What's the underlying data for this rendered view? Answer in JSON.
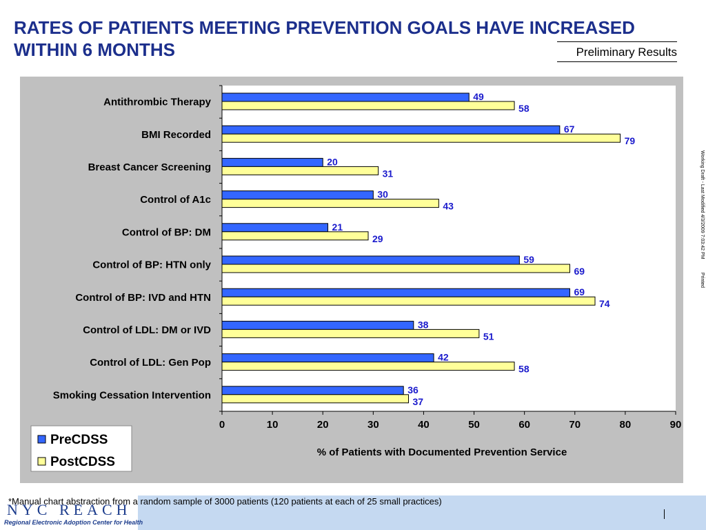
{
  "header": {
    "title": "RATES OF PATIENTS MEETING PREVENTION GOALS HAVE INCREASED WITHIN 6 MONTHS",
    "subtitle": "Preliminary Results"
  },
  "side_note": "Working Draft - Last Modified 4/3/2009 7:03:42 PM          Printed",
  "footer": {
    "footnote": "*Manual chart abstraction from a random sample of 3000 patients (120 patients at each of 25 small practices)",
    "logo_text": "NYC REACH",
    "logo_tagline": "Regional Electronic Adoption Center for Health"
  },
  "chart_data": {
    "type": "bar",
    "orientation": "horizontal",
    "categories": [
      "Antithrombic Therapy",
      "BMI Recorded",
      "Breast Cancer Screening",
      "Control of A1c",
      "Control of BP: DM",
      "Control of BP: HTN only",
      "Control of BP: IVD and HTN",
      "Control of LDL: DM or IVD",
      "Control of LDL: Gen Pop",
      "Smoking Cessation Intervention"
    ],
    "series": [
      {
        "name": "PreCDSS",
        "color": "#3366ff",
        "values": [
          49,
          67,
          20,
          30,
          21,
          59,
          69,
          38,
          42,
          36
        ]
      },
      {
        "name": "PostCDSS",
        "color": "#ffff99",
        "values": [
          58,
          79,
          31,
          43,
          29,
          69,
          74,
          51,
          58,
          37
        ]
      }
    ],
    "xlabel": "% of Patients with Documented Prevention Service",
    "xlim": [
      0,
      90
    ],
    "xticks": [
      0,
      10,
      20,
      30,
      40,
      50,
      60,
      70,
      80,
      90
    ],
    "label_color": "#1a1acc",
    "legend_position": "bottom-left",
    "grid": false
  }
}
